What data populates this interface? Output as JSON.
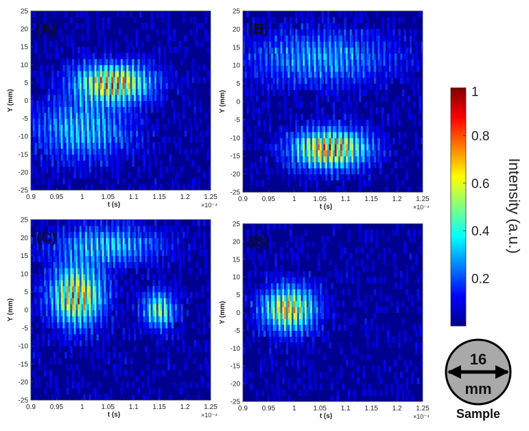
{
  "chart_data": [
    {
      "type": "heatmap",
      "panel_label": "(A)",
      "xlabel": "t (s)",
      "ylabel": "Y (mm)",
      "x_exponent": "×10⁻⁴",
      "xlim": [
        0.9,
        1.25
      ],
      "ylim": [
        -25,
        25
      ],
      "xticks": [
        "0.9",
        "0.95",
        "1",
        "1.05",
        "1.1",
        "1.15",
        "1.2",
        "1.25"
      ],
      "yticks": [
        "-25",
        "-20",
        "-15",
        "-10",
        "-5",
        "0",
        "5",
        "10",
        "15",
        "20",
        "25"
      ],
      "hot_spots": [
        {
          "t": 1.06,
          "y": 5,
          "intensity": 0.75,
          "t_spread": 0.07,
          "y_spread": 5
        },
        {
          "t": 1.0,
          "y": -8,
          "intensity": 0.35,
          "t_spread": 0.09,
          "y_spread": 8
        }
      ]
    },
    {
      "type": "heatmap",
      "panel_label": "(B)",
      "xlabel": "t (s)",
      "ylabel": "Y (mm)",
      "x_exponent": "×10⁻⁴",
      "xlim": [
        0.9,
        1.25
      ],
      "ylim": [
        -25,
        25
      ],
      "xticks": [
        "0.9",
        "0.95",
        "1",
        "1.05",
        "1.1",
        "1.15",
        "1.2",
        "1.25"
      ],
      "yticks": [
        "-25",
        "-20",
        "-15",
        "-10",
        "-5",
        "0",
        "5",
        "10",
        "15",
        "20",
        "25"
      ],
      "hot_spots": [
        {
          "t": 1.07,
          "y": -13,
          "intensity": 0.8,
          "t_spread": 0.07,
          "y_spread": 5
        },
        {
          "t": 1.05,
          "y": 12,
          "intensity": 0.3,
          "t_spread": 0.14,
          "y_spread": 7
        }
      ]
    },
    {
      "type": "heatmap",
      "panel_label": "(C)",
      "xlabel": "t (s)",
      "ylabel": "Y (mm)",
      "x_exponent": "×10⁻⁴",
      "xlim": [
        0.9,
        1.25
      ],
      "ylim": [
        -25,
        25
      ],
      "xticks": [
        "0.9",
        "0.95",
        "1",
        "1.05",
        "1.1",
        "1.15",
        "1.2",
        "1.25"
      ],
      "yticks": [
        "-25",
        "-20",
        "-15",
        "-10",
        "-5",
        "0",
        "5",
        "10",
        "15",
        "20",
        "25"
      ],
      "hot_spots": [
        {
          "t": 0.99,
          "y": 4,
          "intensity": 0.72,
          "t_spread": 0.05,
          "y_spread": 8
        },
        {
          "t": 1.15,
          "y": 0,
          "intensity": 0.5,
          "t_spread": 0.03,
          "y_spread": 5
        },
        {
          "t": 1.05,
          "y": 18,
          "intensity": 0.35,
          "t_spread": 0.1,
          "y_spread": 5
        }
      ]
    },
    {
      "type": "heatmap",
      "panel_label": "(D)",
      "xlabel": "t (s)",
      "ylabel": "Y (mm)",
      "x_exponent": "×10⁻⁴",
      "xlim": [
        0.9,
        1.25
      ],
      "ylim": [
        -25,
        25
      ],
      "xticks": [
        "0.9",
        "0.95",
        "1",
        "1.05",
        "1.1",
        "1.15",
        "1.2",
        "1.25"
      ],
      "yticks": [
        "-25",
        "-20",
        "-15",
        "-10",
        "-5",
        "0",
        "5",
        "10",
        "15",
        "20",
        "25"
      ],
      "hot_spots": [
        {
          "t": 0.99,
          "y": 1,
          "intensity": 0.7,
          "t_spread": 0.05,
          "y_spread": 6
        }
      ]
    }
  ],
  "colorbar": {
    "label": "Intensity (a.u.)",
    "ticks": [
      "0.2",
      "0.4",
      "0.6",
      "0.8",
      "1"
    ],
    "tick_values": [
      0.2,
      0.4,
      0.6,
      0.8,
      1
    ],
    "range": [
      0,
      1
    ],
    "colormap": "jet"
  },
  "sample": {
    "size_value": "16",
    "size_unit": "mm",
    "caption": "Sample",
    "fill_color": "#a9a9a9"
  },
  "colors": {
    "background_dark": "#00008f",
    "high": "#8b0000"
  }
}
